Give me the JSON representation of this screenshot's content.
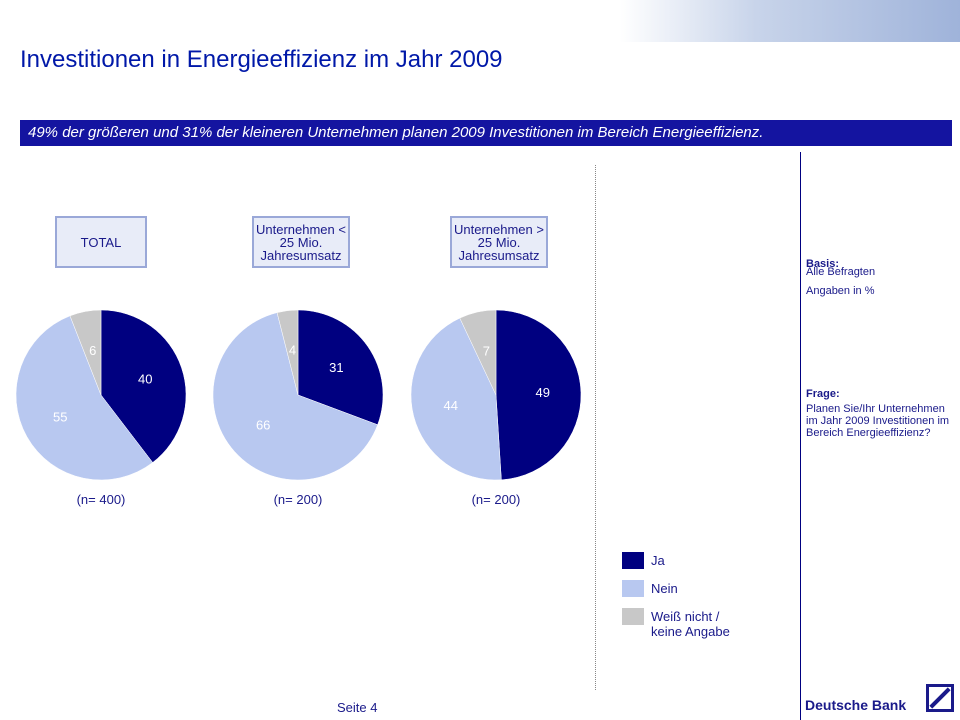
{
  "title": "Investitionen in Energieeffizienz im Jahr 2009",
  "subtitle": "49% der größeren und 31% der kleineren Unternehmen planen 2009 Investitionen im Bereich Energieeffizienz.",
  "basis": {
    "label": "Basis:",
    "text": "Alle Befragten",
    "unit": "Angaben in %"
  },
  "question": {
    "label": "Frage:",
    "text": "Planen Sie/Ihr Unternehmen im Jahr 2009 Investitionen im Bereich Energieeffizienz?"
  },
  "footer": {
    "page": "Seite 4",
    "brand": "Deutsche Bank"
  },
  "chart_data": [
    {
      "type": "pie",
      "title": "TOTAL",
      "note": "(n= 400)",
      "categories": [
        "Ja",
        "Nein",
        "Weiß nicht / keine Angabe"
      ],
      "values": [
        40,
        55,
        6
      ],
      "colors": [
        "#000080",
        "#b8c8f0",
        "#c8c8c8"
      ]
    },
    {
      "type": "pie",
      "title": "Unternehmen < 25 Mio. Jahresumsatz",
      "note": "(n= 200)",
      "categories": [
        "Ja",
        "Nein",
        "Weiß nicht / keine Angabe"
      ],
      "values": [
        31,
        66,
        4
      ],
      "colors": [
        "#000080",
        "#b8c8f0",
        "#c8c8c8"
      ]
    },
    {
      "type": "pie",
      "title": "Unternehmen > 25 Mio. Jahresumsatz",
      "note": "(n= 200)",
      "categories": [
        "Ja",
        "Nein",
        "Weiß nicht / keine Angabe"
      ],
      "values": [
        49,
        44,
        7
      ],
      "colors": [
        "#000080",
        "#b8c8f0",
        "#c8c8c8"
      ]
    }
  ]
}
